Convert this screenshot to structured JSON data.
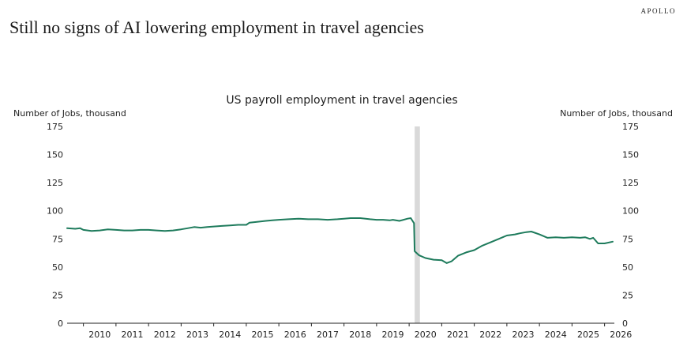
{
  "page": {
    "brand": "APOLLO",
    "headline": "Still no signs of AI lowering employment in travel agencies"
  },
  "chart_data": {
    "type": "line",
    "title": "US payroll employment in travel agencies",
    "ylabel_left": "Number of Jobs, thousand",
    "ylabel_right": "Number of Jobs, thousand",
    "ylim": [
      0,
      175
    ],
    "yticks": [
      0,
      25,
      50,
      75,
      100,
      125,
      150,
      175
    ],
    "xlim": [
      2009.5,
      2026.3
    ],
    "xticks": [
      "2010",
      "2011",
      "2012",
      "2013",
      "2014",
      "2015",
      "2016",
      "2017",
      "2018",
      "2019",
      "2020",
      "2021",
      "2022",
      "2023",
      "2024",
      "2025",
      "2026"
    ],
    "grid": false,
    "line_color": "#1e7b5c",
    "shaded_region": {
      "x_start": 2020.17,
      "x_end": 2020.33,
      "color": "#d9d9d9"
    },
    "series": [
      {
        "x": [
          2009.5,
          2009.75,
          2009.9,
          2010.0,
          2010.25,
          2010.5,
          2010.75,
          2011.0,
          2011.25,
          2011.5,
          2011.75,
          2012.0,
          2012.25,
          2012.5,
          2012.75,
          2013.0,
          2013.2,
          2013.4,
          2013.6,
          2013.8,
          2014.0,
          2014.25,
          2014.5,
          2014.75,
          2015.0,
          2015.1,
          2015.3,
          2015.6,
          2015.8,
          2016.0,
          2016.3,
          2016.6,
          2016.9,
          2017.2,
          2017.5,
          2017.8,
          2018.0,
          2018.2,
          2018.5,
          2018.8,
          2019.0,
          2019.2,
          2019.4,
          2019.5,
          2019.7,
          2019.95,
          2020.05,
          2020.15,
          2020.17,
          2020.3,
          2020.5,
          2020.75,
          2021.0,
          2021.15,
          2021.3,
          2021.5,
          2021.75,
          2022.0,
          2022.25,
          2022.5,
          2022.75,
          2023.0,
          2023.25,
          2023.4,
          2023.6,
          2023.75,
          2024.0,
          2024.25,
          2024.5,
          2024.75,
          2025.0,
          2025.25,
          2025.4,
          2025.55,
          2025.65,
          2025.8,
          2026.0,
          2026.25
        ],
        "values": [
          84.5,
          84.0,
          84.5,
          83.0,
          82.0,
          82.5,
          83.5,
          83.0,
          82.5,
          82.5,
          83.0,
          83.0,
          82.5,
          82.0,
          82.5,
          83.5,
          84.5,
          85.5,
          85.0,
          85.5,
          86.0,
          86.5,
          87.0,
          87.5,
          87.5,
          89.5,
          90.0,
          91.0,
          91.5,
          92.0,
          92.5,
          93.0,
          92.5,
          92.5,
          92.0,
          92.5,
          93.0,
          93.5,
          93.5,
          92.5,
          92.0,
          92.0,
          91.5,
          92.0,
          91.0,
          93.0,
          93.5,
          89.0,
          64.0,
          60.5,
          58.0,
          56.5,
          56.0,
          53.5,
          55.0,
          60.0,
          63.0,
          65.0,
          69.0,
          72.0,
          75.0,
          78.0,
          79.0,
          80.0,
          81.0,
          81.5,
          79.0,
          76.0,
          76.5,
          76.0,
          76.5,
          76.0,
          76.5,
          75.0,
          76.0,
          71.0,
          71.0,
          72.5
        ]
      }
    ]
  }
}
